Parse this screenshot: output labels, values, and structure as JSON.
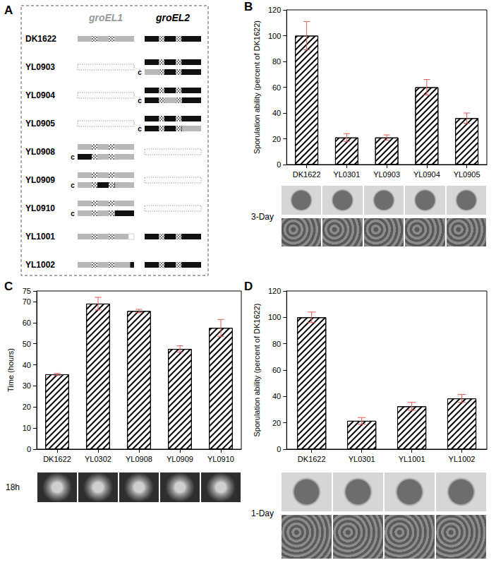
{
  "diagram": {
    "panel_label": "A",
    "columns": [
      "groEL1",
      "groEL2"
    ],
    "strains": [
      "DK1622",
      "YL0903",
      "YL0904",
      "YL0905",
      "YL0908",
      "YL0909",
      "YL0910",
      "YL1001",
      "YL1002"
    ],
    "complement_label": "c"
  },
  "chart_data": [
    {
      "type": "bar",
      "panel_label": "B",
      "y_label": "Sporulation ability (percent of DK1622)",
      "categories": [
        "DK1622",
        "YL0301",
        "YL0903",
        "YL0904",
        "YL0905"
      ],
      "values": [
        100,
        21,
        21,
        60,
        36
      ],
      "errors": [
        11,
        3,
        2,
        6,
        4
      ],
      "color": "#000000",
      "ylim": [
        0,
        120
      ],
      "yticks": [
        0,
        20,
        40,
        60,
        80,
        100,
        120
      ],
      "grid": false,
      "annotations": [
        "3-Day"
      ]
    },
    {
      "type": "bar",
      "panel_label": "C",
      "y_label": "Time (hours)",
      "categories": [
        "DK1622",
        "YL0302",
        "YL0908",
        "YL0909",
        "YL0910"
      ],
      "values": [
        35.5,
        69,
        65.5,
        47.5,
        57.5
      ],
      "errors": [
        0.5,
        3,
        0.8,
        1.5,
        4
      ],
      "color": "#000000",
      "ylim": [
        0,
        75
      ],
      "yticks": [
        0,
        10,
        20,
        30,
        40,
        50,
        60,
        70
      ],
      "grid": false,
      "annotations": [
        "18h"
      ]
    },
    {
      "type": "bar",
      "panel_label": "D",
      "y_label": "Sporulation ability (percent of DK1622)",
      "categories": [
        "DK1622",
        "YL0301",
        "YL1001",
        "YL1002"
      ],
      "values": [
        100,
        21.5,
        32.5,
        38.5
      ],
      "errors": [
        4,
        2.5,
        3,
        3
      ],
      "color": "#000000",
      "ylim": [
        0,
        120
      ],
      "yticks": [
        0,
        20,
        40,
        60,
        80,
        100,
        120
      ],
      "grid": false,
      "annotations": [
        "1-Day"
      ]
    }
  ]
}
